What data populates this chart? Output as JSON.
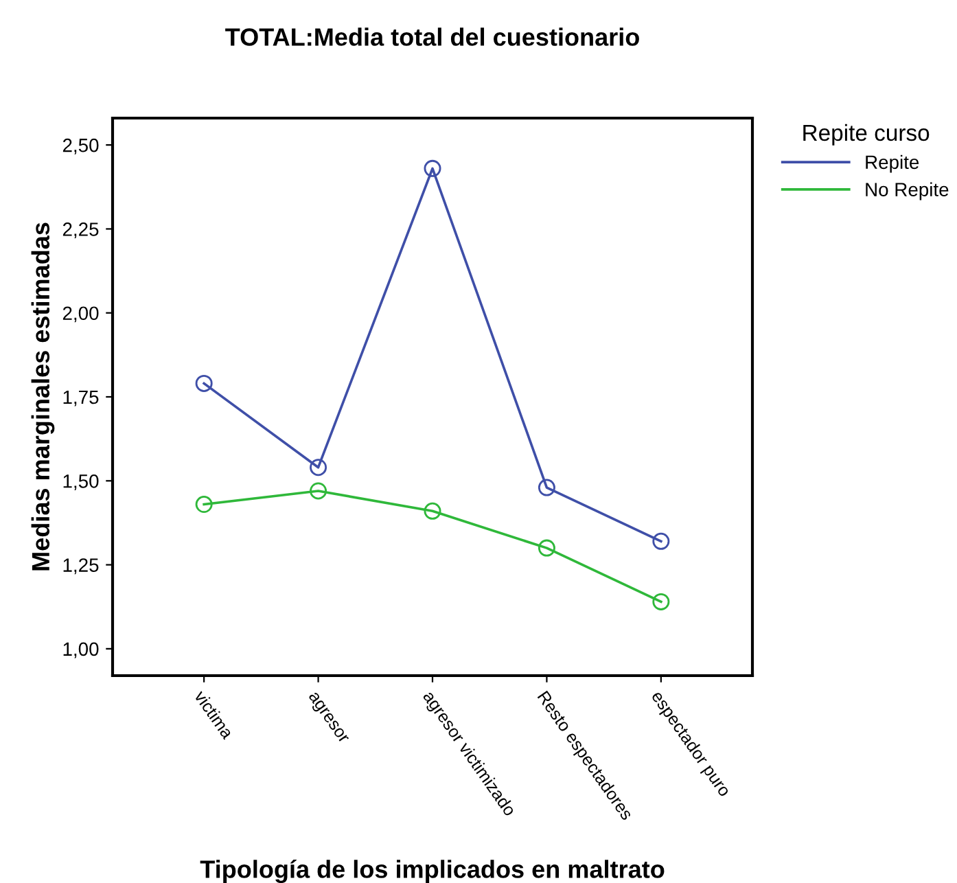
{
  "chart_data": {
    "type": "line",
    "title": "TOTAL:Media total del cuestionario",
    "xlabel": "Tipología de los implicados en maltrato",
    "ylabel": "Medias marginales estimadas",
    "legend_title": "Repite curso",
    "categories": [
      "victima",
      "agresor",
      "agresor victimizado",
      "Resto espectadores",
      "espectador puro"
    ],
    "series": [
      {
        "name": "Repite",
        "color": "#3f4fa8",
        "values": [
          1.79,
          1.54,
          2.43,
          1.48,
          1.32
        ]
      },
      {
        "name": "No Repite",
        "color": "#2fb83a",
        "values": [
          1.43,
          1.47,
          1.41,
          1.3,
          1.14
        ]
      }
    ],
    "ylim": [
      0.92,
      2.58
    ],
    "yticks": [
      {
        "value": 1.0,
        "label": "1,00"
      },
      {
        "value": 1.25,
        "label": "1,25"
      },
      {
        "value": 1.5,
        "label": "1,50"
      },
      {
        "value": 1.75,
        "label": "1,75"
      },
      {
        "value": 2.0,
        "label": "2,00"
      },
      {
        "value": 2.25,
        "label": "2,25"
      },
      {
        "value": 2.5,
        "label": "2,50"
      }
    ],
    "marker": "circle",
    "line_style": "solid",
    "grid": false,
    "legend": "top right"
  }
}
